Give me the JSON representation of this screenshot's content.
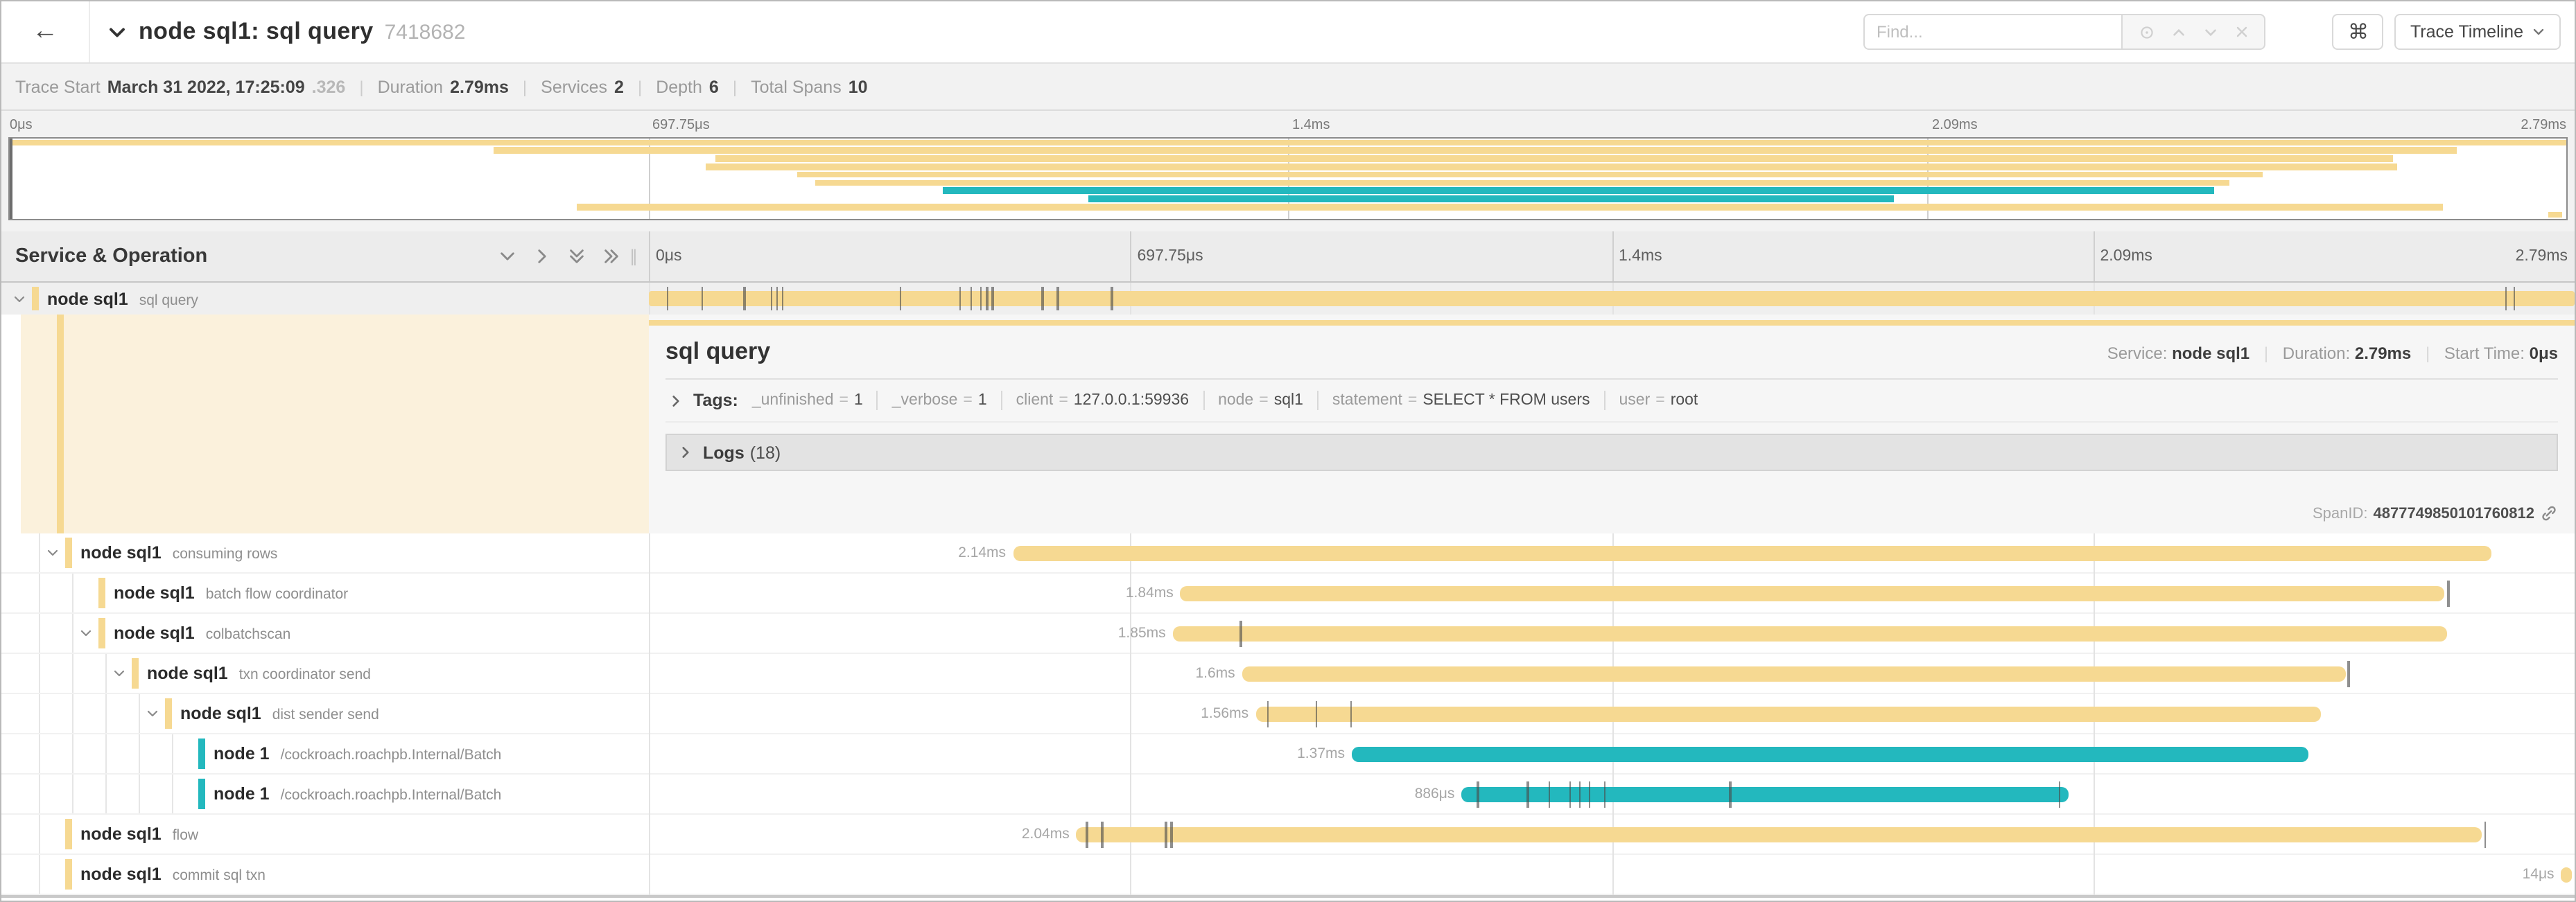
{
  "header": {
    "back_icon": "←",
    "title": "node sql1: sql query",
    "trace_id_short": "7418682",
    "find_placeholder": "Find...",
    "shortcut_button": "⌘",
    "view_button": "Trace Timeline"
  },
  "summary": {
    "trace_start_label": "Trace Start",
    "trace_start_value": "March 31 2022, 17:25:09",
    "trace_start_fraction": ".326",
    "duration_label": "Duration",
    "duration_value": "2.79ms",
    "services_label": "Services",
    "services_value": "2",
    "depth_label": "Depth",
    "depth_value": "6",
    "total_spans_label": "Total Spans",
    "total_spans_value": "10"
  },
  "timeline": {
    "ticks": [
      "0μs",
      "697.75μs",
      "1.4ms",
      "2.09ms",
      "2.79ms"
    ],
    "tick_positions": [
      0,
      25,
      50,
      75,
      100
    ]
  },
  "tree_header": {
    "title": "Service & Operation"
  },
  "colors": {
    "tan": "#F6D992",
    "teal": "#23B8BE",
    "cream": "#FBF1DC"
  },
  "spans": [
    {
      "service": "node sql1",
      "operation": "sql query",
      "depth": 0,
      "color": "tan",
      "chevron": true,
      "selected": true,
      "start": 0,
      "width": 100,
      "duration_label": "",
      "ticks": [
        0.9,
        2.7,
        4.9,
        6.3,
        6.6,
        6.9,
        13,
        16.1,
        16.7,
        17.2,
        17.5,
        17.8,
        20.4,
        21.2,
        24,
        96.4,
        96.8
      ]
    },
    {
      "service": "node sql1",
      "operation": "consuming rows",
      "depth": 1,
      "color": "tan",
      "chevron": true,
      "selected": false,
      "start": 18.9,
      "width": 76.8,
      "duration_label": "2.14ms",
      "ticks": []
    },
    {
      "service": "node sql1",
      "operation": "batch flow coordinator",
      "depth": 2,
      "color": "tan",
      "chevron": false,
      "selected": false,
      "start": 27.6,
      "width": 65.6,
      "duration_label": "1.84ms",
      "ticks": [
        93.4
      ]
    },
    {
      "service": "node sql1",
      "operation": "colbatchscan",
      "depth": 2,
      "color": "tan",
      "chevron": true,
      "selected": false,
      "start": 27.2,
      "width": 66.2,
      "duration_label": "1.85ms",
      "ticks": [
        30.7
      ]
    },
    {
      "service": "node sql1",
      "operation": "txn coordinator send",
      "depth": 3,
      "color": "tan",
      "chevron": true,
      "selected": false,
      "start": 30.8,
      "width": 57.3,
      "duration_label": "1.6ms",
      "ticks": [
        88.2
      ]
    },
    {
      "service": "node sql1",
      "operation": "dist sender send",
      "depth": 4,
      "color": "tan",
      "chevron": true,
      "selected": false,
      "start": 31.5,
      "width": 55.3,
      "duration_label": "1.56ms",
      "ticks": [
        32.1,
        34.6,
        36.4
      ]
    },
    {
      "service": "node 1",
      "operation": "/cockroach.roachpb.Internal/Batch",
      "depth": 5,
      "color": "teal",
      "chevron": false,
      "selected": false,
      "start": 36.5,
      "width": 49.7,
      "duration_label": "1.37ms",
      "ticks": []
    },
    {
      "service": "node 1",
      "operation": "/cockroach.roachpb.Internal/Batch",
      "depth": 5,
      "color": "teal",
      "chevron": false,
      "selected": false,
      "start": 42.2,
      "width": 31.5,
      "duration_label": "886μs",
      "ticks": [
        43,
        45.6,
        46.7,
        47.8,
        48.3,
        48.8,
        49.6,
        56.1,
        73.2
      ]
    },
    {
      "service": "node sql1",
      "operation": "flow",
      "depth": 1,
      "color": "tan",
      "chevron": false,
      "selected": false,
      "start": 22.2,
      "width": 73,
      "duration_label": "2.04ms",
      "ticks": [
        22.7,
        23.5,
        26.8,
        27.1,
        95.3
      ]
    },
    {
      "service": "node sql1",
      "operation": "commit sql txn",
      "depth": 1,
      "color": "tan",
      "chevron": false,
      "selected": false,
      "start": 99.3,
      "width": 0.55,
      "duration_label": "14μs",
      "ticks": []
    }
  ],
  "detail": {
    "title": "sql query",
    "service_label": "Service:",
    "service_value": "node sql1",
    "duration_label": "Duration:",
    "duration_value": "2.79ms",
    "start_label": "Start Time:",
    "start_value": "0μs",
    "tags_label": "Tags:",
    "tags": [
      {
        "key": "_unfinished",
        "value": "1"
      },
      {
        "key": "_verbose",
        "value": "1"
      },
      {
        "key": "client",
        "value": "127.0.0.1:59936"
      },
      {
        "key": "node",
        "value": "sql1"
      },
      {
        "key": "statement",
        "value": "SELECT * FROM users"
      },
      {
        "key": "user",
        "value": "root"
      }
    ],
    "logs_label": "Logs",
    "logs_count": "(18)",
    "spanid_label": "SpanID:",
    "spanid_value": "4877749850101760812"
  }
}
